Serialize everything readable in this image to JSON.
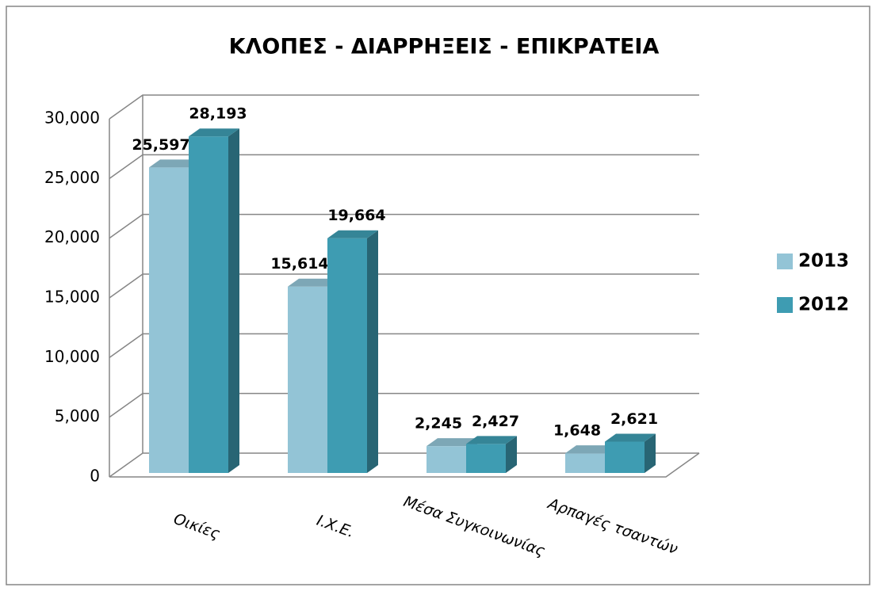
{
  "chart_data": {
    "type": "bar3d",
    "title": "ΚΛΟΠΕΣ - ΔΙΑΡΡΗΞΕΙΣ - ΕΠΙΚΡΑΤΕΙΑ",
    "categories": [
      "Οικίες",
      "Ι.Χ.Ε.",
      "Μέσα Συγκοινωνίας",
      "Αρπαγές τσαντών"
    ],
    "series": [
      {
        "name": "2013",
        "color": "#93c4d6",
        "values": [
          25597,
          15614,
          2245,
          1648
        ],
        "value_labels": [
          "25,597",
          "15,614",
          "2,245",
          "1,648"
        ]
      },
      {
        "name": "2012",
        "color": "#3e9cb2",
        "values": [
          28193,
          19664,
          2427,
          2621
        ],
        "value_labels": [
          "28,193",
          "19,664",
          "2,427",
          "2,621"
        ]
      }
    ],
    "ylim": [
      0,
      30000
    ],
    "yticks": [
      0,
      {
        "value": 5000,
        "label": "5,000"
      },
      {
        "value": 10000,
        "label": "10,000"
      },
      {
        "value": 15000,
        "label": "15,000"
      },
      {
        "value": 20000,
        "label": "20,000"
      },
      {
        "value": 25000,
        "label": "25,000"
      },
      {
        "value": 30000,
        "label": "30,000"
      }
    ],
    "grid": true,
    "legend": "right"
  }
}
